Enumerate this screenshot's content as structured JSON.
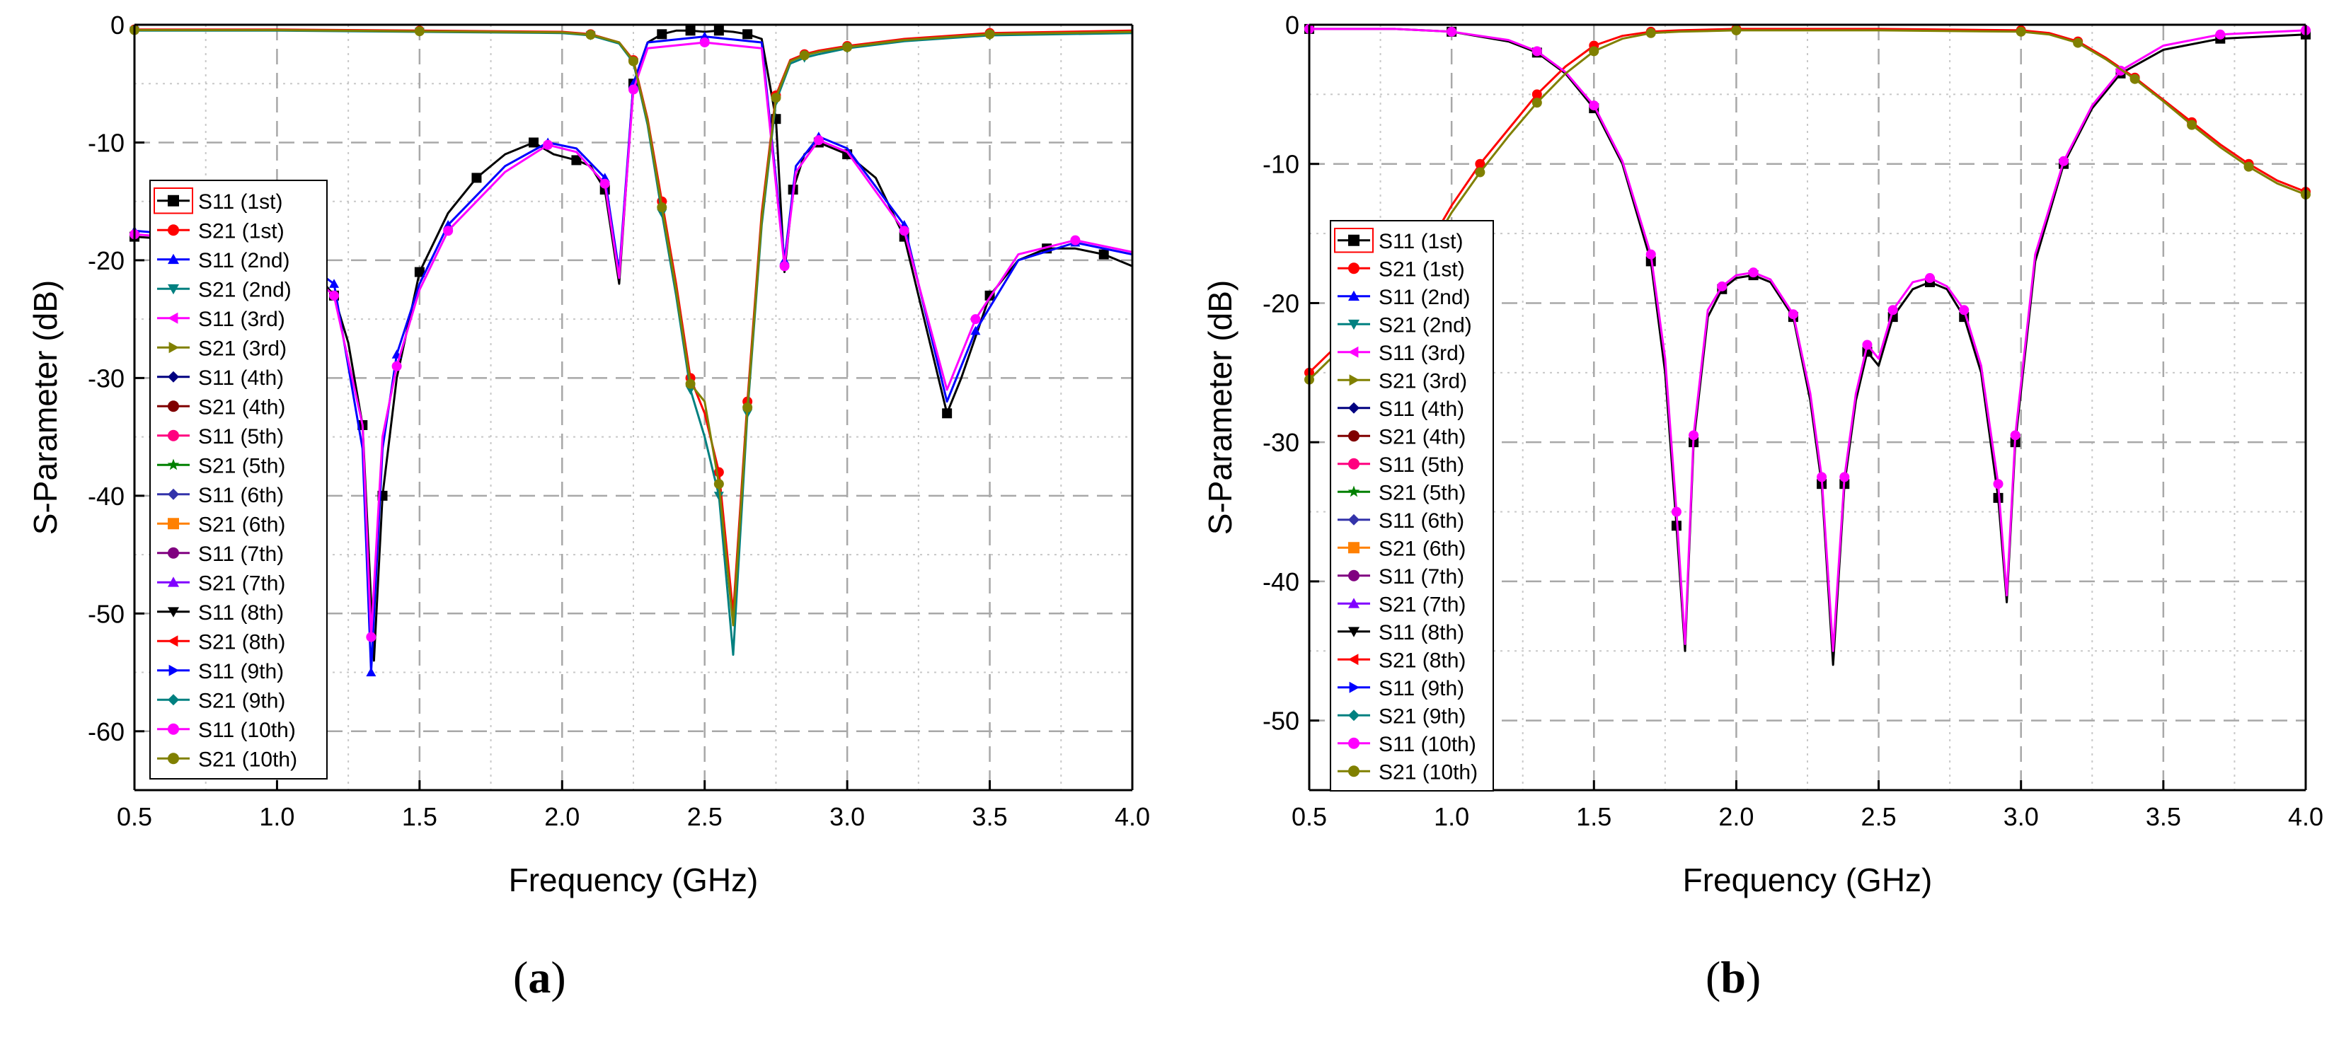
{
  "figure": {
    "panels": [
      {
        "label_open": "(",
        "label_letter": "a",
        "label_close": ")"
      },
      {
        "label_open": "(",
        "label_letter": "b",
        "label_close": ")"
      }
    ]
  },
  "chart_data": [
    {
      "type": "line",
      "title": "",
      "xlabel": "Frequency (GHz)",
      "ylabel": "S-Parameter (dB)",
      "xlim": [
        0.5,
        4.0
      ],
      "ylim": [
        -65,
        0
      ],
      "xticks": [
        0.5,
        1.0,
        1.5,
        2.0,
        2.5,
        3.0,
        3.5,
        4.0
      ],
      "xtick_labels": [
        "0.5",
        "1.0",
        "1.5",
        "2.0",
        "2.5",
        "3.0",
        "3.5",
        "4.0"
      ],
      "yticks": [
        0,
        -10,
        -20,
        -30,
        -40,
        -50,
        -60
      ],
      "ytick_labels": [
        "0",
        "-10",
        "-20",
        "-30",
        "-40",
        "-50",
        "-60"
      ],
      "grid": true,
      "legend_position": "left",
      "legend": [
        {
          "name": "S11 (1st)",
          "color": "#000000",
          "marker": "square"
        },
        {
          "name": "S21 (1st)",
          "color": "#ff0000",
          "marker": "circle"
        },
        {
          "name": "S11 (2nd)",
          "color": "#0000ff",
          "marker": "triangle-up"
        },
        {
          "name": "S21 (2nd)",
          "color": "#008080",
          "marker": "triangle-down"
        },
        {
          "name": "S11 (3rd)",
          "color": "#ff00ff",
          "marker": "triangle-left"
        },
        {
          "name": "S21 (3rd)",
          "color": "#808000",
          "marker": "triangle-right"
        },
        {
          "name": "S11 (4th)",
          "color": "#000080",
          "marker": "diamond"
        },
        {
          "name": "S21 (4th)",
          "color": "#800000",
          "marker": "circle"
        },
        {
          "name": "S11 (5th)",
          "color": "#ff007f",
          "marker": "circle"
        },
        {
          "name": "S21 (5th)",
          "color": "#008000",
          "marker": "star"
        },
        {
          "name": "S11 (6th)",
          "color": "#3333aa",
          "marker": "diamond"
        },
        {
          "name": "S21 (6th)",
          "color": "#ff8000",
          "marker": "square"
        },
        {
          "name": "S11 (7th)",
          "color": "#800080",
          "marker": "circle"
        },
        {
          "name": "S21 (7th)",
          "color": "#8000ff",
          "marker": "triangle-up"
        },
        {
          "name": "S11 (8th)",
          "color": "#000000",
          "marker": "triangle-down"
        },
        {
          "name": "S21 (8th)",
          "color": "#ff0000",
          "marker": "triangle-left"
        },
        {
          "name": "S11 (9th)",
          "color": "#0000ff",
          "marker": "triangle-right"
        },
        {
          "name": "S21 (9th)",
          "color": "#008080",
          "marker": "diamond"
        },
        {
          "name": "S11 (10th)",
          "color": "#ff00ff",
          "marker": "circle"
        },
        {
          "name": "S21 (10th)",
          "color": "#808000",
          "marker": "circle"
        }
      ],
      "series": [
        {
          "name": "S11 (1st)",
          "color": "#000000",
          "x": [
            0.5,
            0.8,
            1.0,
            1.1,
            1.2,
            1.25,
            1.3,
            1.34,
            1.37,
            1.42,
            1.5,
            1.6,
            1.7,
            1.8,
            1.9,
            1.97,
            2.05,
            2.1,
            2.15,
            2.2,
            2.25,
            2.3,
            2.35,
            2.4,
            2.45,
            2.5,
            2.55,
            2.6,
            2.65,
            2.7,
            2.75,
            2.78,
            2.81,
            2.85,
            2.9,
            2.95,
            3.0,
            3.1,
            3.2,
            3.3,
            3.35,
            3.4,
            3.5,
            3.6,
            3.7,
            3.8,
            3.9,
            4.0
          ],
          "y": [
            -18,
            -18.5,
            -19,
            -20,
            -23,
            -27,
            -34,
            -54,
            -40,
            -30,
            -21,
            -16,
            -13,
            -11,
            -10,
            -11,
            -11.5,
            -12,
            -14,
            -22,
            -5,
            -1.5,
            -0.8,
            -0.5,
            -0.5,
            -0.6,
            -0.5,
            -0.6,
            -0.8,
            -1.2,
            -8,
            -21,
            -14,
            -11,
            -10,
            -10.5,
            -11,
            -13,
            -18,
            -28,
            -33,
            -30,
            -23,
            -20,
            -19,
            -19,
            -19.5,
            -20.5
          ]
        },
        {
          "name": "S21 (1st)",
          "color": "#ff0000",
          "x": [
            0.5,
            1.0,
            1.5,
            2.0,
            2.1,
            2.2,
            2.25,
            2.3,
            2.35,
            2.4,
            2.45,
            2.5,
            2.55,
            2.6,
            2.65,
            2.7,
            2.75,
            2.8,
            2.85,
            2.9,
            3.0,
            3.2,
            3.5,
            4.0
          ],
          "y": [
            -0.4,
            -0.4,
            -0.5,
            -0.6,
            -0.8,
            -1.5,
            -3,
            -8,
            -15,
            -22,
            -30,
            -33,
            -38,
            -50,
            -32,
            -16,
            -6,
            -3,
            -2.5,
            -2.2,
            -1.8,
            -1.2,
            -0.7,
            -0.5
          ]
        },
        {
          "name": "S11 (2nd)",
          "color": "#0000ff",
          "x": [
            0.5,
            1.0,
            1.2,
            1.3,
            1.33,
            1.37,
            1.42,
            1.5,
            1.6,
            1.8,
            1.95,
            2.05,
            2.15,
            2.2,
            2.25,
            2.3,
            2.5,
            2.7,
            2.78,
            2.82,
            2.9,
            3.0,
            3.2,
            3.35,
            3.45,
            3.6,
            3.8,
            4.0
          ],
          "y": [
            -17.5,
            -18.5,
            -22,
            -36,
            -55,
            -36,
            -28,
            -22,
            -17,
            -12,
            -10,
            -10.5,
            -13,
            -21,
            -5,
            -1.5,
            -1,
            -1.5,
            -20,
            -12,
            -9.5,
            -10.5,
            -17,
            -32,
            -26,
            -20,
            -18.5,
            -19.5
          ]
        },
        {
          "name": "S21 (2nd)",
          "color": "#008080",
          "x": [
            0.5,
            1.0,
            1.5,
            2.0,
            2.1,
            2.2,
            2.25,
            2.3,
            2.35,
            2.4,
            2.45,
            2.5,
            2.55,
            2.6,
            2.65,
            2.7,
            2.75,
            2.8,
            2.85,
            2.9,
            3.0,
            3.2,
            3.5,
            4.0
          ],
          "y": [
            -0.5,
            -0.5,
            -0.6,
            -0.7,
            -0.9,
            -1.6,
            -3.2,
            -8.5,
            -16,
            -23,
            -31,
            -35,
            -40,
            -53.5,
            -33,
            -17,
            -6.5,
            -3.3,
            -2.8,
            -2.5,
            -2.0,
            -1.4,
            -0.9,
            -0.7
          ]
        },
        {
          "name": "S11 (10th)",
          "color": "#ff00ff",
          "x": [
            0.5,
            1.0,
            1.2,
            1.3,
            1.33,
            1.37,
            1.42,
            1.5,
            1.6,
            1.8,
            1.95,
            2.05,
            2.15,
            2.2,
            2.25,
            2.3,
            2.5,
            2.7,
            2.78,
            2.82,
            2.9,
            3.0,
            3.2,
            3.35,
            3.45,
            3.6,
            3.8,
            4.0
          ],
          "y": [
            -17.8,
            -18.7,
            -23,
            -34,
            -52,
            -35,
            -29,
            -22.5,
            -17.5,
            -12.5,
            -10.2,
            -10.8,
            -13.5,
            -21.5,
            -5.5,
            -2,
            -1.5,
            -2,
            -20.5,
            -12.5,
            -9.8,
            -10.8,
            -17.5,
            -31,
            -25,
            -19.5,
            -18.3,
            -19.3
          ]
        },
        {
          "name": "S21 (10th)",
          "color": "#808000",
          "x": [
            0.5,
            1.0,
            1.5,
            2.0,
            2.1,
            2.2,
            2.25,
            2.3,
            2.35,
            2.4,
            2.45,
            2.5,
            2.55,
            2.6,
            2.65,
            2.7,
            2.75,
            2.8,
            2.85,
            2.9,
            3.0,
            3.2,
            3.5,
            4.0
          ],
          "y": [
            -0.45,
            -0.45,
            -0.55,
            -0.65,
            -0.85,
            -1.5,
            -3.1,
            -8.2,
            -15.5,
            -22.5,
            -30.5,
            -32,
            -39,
            -51,
            -32.5,
            -16.5,
            -6.2,
            -3.1,
            -2.6,
            -2.3,
            -1.9,
            -1.3,
            -0.8,
            -0.6
          ]
        }
      ]
    },
    {
      "type": "line",
      "title": "",
      "xlabel": "Frequency (GHz)",
      "ylabel": "S-Parameter (dB)",
      "xlim": [
        0.5,
        4.0
      ],
      "ylim": [
        -55,
        0
      ],
      "xticks": [
        0.5,
        1.0,
        1.5,
        2.0,
        2.5,
        3.0,
        3.5,
        4.0
      ],
      "xtick_labels": [
        "0.5",
        "1.0",
        "1.5",
        "2.0",
        "2.5",
        "3.0",
        "3.5",
        "4.0"
      ],
      "yticks": [
        0,
        -10,
        -20,
        -30,
        -40,
        -50
      ],
      "ytick_labels": [
        "0",
        "-10",
        "-20",
        "-30",
        "-40",
        "-50"
      ],
      "grid": true,
      "legend_position": "left",
      "legend": [
        {
          "name": "S11 (1st)",
          "color": "#000000",
          "marker": "square"
        },
        {
          "name": "S21 (1st)",
          "color": "#ff0000",
          "marker": "circle"
        },
        {
          "name": "S11 (2nd)",
          "color": "#0000ff",
          "marker": "triangle-up"
        },
        {
          "name": "S21 (2nd)",
          "color": "#008080",
          "marker": "triangle-down"
        },
        {
          "name": "S11 (3rd)",
          "color": "#ff00ff",
          "marker": "triangle-left"
        },
        {
          "name": "S21 (3rd)",
          "color": "#808000",
          "marker": "triangle-right"
        },
        {
          "name": "S11 (4th)",
          "color": "#000080",
          "marker": "diamond"
        },
        {
          "name": "S21 (4th)",
          "color": "#800000",
          "marker": "circle"
        },
        {
          "name": "S11 (5th)",
          "color": "#ff007f",
          "marker": "circle"
        },
        {
          "name": "S21 (5th)",
          "color": "#008000",
          "marker": "star"
        },
        {
          "name": "S11 (6th)",
          "color": "#3333aa",
          "marker": "diamond"
        },
        {
          "name": "S21 (6th)",
          "color": "#ff8000",
          "marker": "square"
        },
        {
          "name": "S11 (7th)",
          "color": "#800080",
          "marker": "circle"
        },
        {
          "name": "S21 (7th)",
          "color": "#8000ff",
          "marker": "triangle-up"
        },
        {
          "name": "S11 (8th)",
          "color": "#000000",
          "marker": "triangle-down"
        },
        {
          "name": "S21 (8th)",
          "color": "#ff0000",
          "marker": "triangle-left"
        },
        {
          "name": "S11 (9th)",
          "color": "#0000ff",
          "marker": "triangle-right"
        },
        {
          "name": "S21 (9th)",
          "color": "#008080",
          "marker": "diamond"
        },
        {
          "name": "S11 (10th)",
          "color": "#ff00ff",
          "marker": "circle"
        },
        {
          "name": "S21 (10th)",
          "color": "#808000",
          "marker": "circle"
        }
      ],
      "series": [
        {
          "name": "S11 (1st)",
          "color": "#000000",
          "x": [
            0.5,
            0.8,
            1.0,
            1.2,
            1.3,
            1.4,
            1.5,
            1.6,
            1.7,
            1.75,
            1.79,
            1.82,
            1.85,
            1.9,
            1.95,
            2.0,
            2.06,
            2.12,
            2.2,
            2.26,
            2.3,
            2.34,
            2.38,
            2.42,
            2.46,
            2.5,
            2.55,
            2.62,
            2.68,
            2.74,
            2.8,
            2.86,
            2.92,
            2.95,
            2.98,
            3.05,
            3.15,
            3.25,
            3.35,
            3.5,
            3.7,
            3.9,
            4.0
          ],
          "y": [
            -0.3,
            -0.3,
            -0.5,
            -1.2,
            -2,
            -3.5,
            -6,
            -10,
            -17,
            -25,
            -36,
            -45,
            -30,
            -21,
            -19,
            -18.2,
            -18,
            -18.5,
            -21,
            -27,
            -33,
            -46,
            -33,
            -27,
            -23.5,
            -24.5,
            -21,
            -19,
            -18.5,
            -19,
            -21,
            -25,
            -34,
            -41.5,
            -30,
            -17,
            -10,
            -6,
            -3.5,
            -1.8,
            -1,
            -0.8,
            -0.7
          ]
        },
        {
          "name": "S21 (1st)",
          "color": "#ff0000",
          "x": [
            0.5,
            0.7,
            0.9,
            1.0,
            1.1,
            1.2,
            1.3,
            1.4,
            1.5,
            1.6,
            1.7,
            1.8,
            2.0,
            2.5,
            3.0,
            3.1,
            3.2,
            3.3,
            3.4,
            3.5,
            3.6,
            3.7,
            3.8,
            3.9,
            4.0
          ],
          "y": [
            -25,
            -21,
            -16.5,
            -13,
            -10,
            -7.5,
            -5,
            -3,
            -1.5,
            -0.8,
            -0.5,
            -0.4,
            -0.3,
            -0.3,
            -0.4,
            -0.6,
            -1.2,
            -2.4,
            -3.8,
            -5.4,
            -7,
            -8.6,
            -10,
            -11.2,
            -12
          ]
        },
        {
          "name": "S11 (10th)",
          "color": "#ff00ff",
          "x": [
            0.5,
            0.8,
            1.0,
            1.2,
            1.3,
            1.4,
            1.5,
            1.6,
            1.7,
            1.75,
            1.79,
            1.82,
            1.85,
            1.9,
            1.95,
            2.0,
            2.06,
            2.12,
            2.2,
            2.26,
            2.3,
            2.34,
            2.38,
            2.42,
            2.46,
            2.5,
            2.55,
            2.62,
            2.68,
            2.74,
            2.8,
            2.86,
            2.92,
            2.95,
            2.98,
            3.05,
            3.15,
            3.25,
            3.35,
            3.5,
            3.7,
            3.9,
            4.0
          ],
          "y": [
            -0.3,
            -0.3,
            -0.5,
            -1.1,
            -1.9,
            -3.4,
            -5.8,
            -9.8,
            -16.5,
            -24,
            -35,
            -44.5,
            -29.5,
            -20.5,
            -18.8,
            -18,
            -17.8,
            -18.3,
            -20.8,
            -26.5,
            -32.5,
            -45,
            -32.5,
            -26.5,
            -23,
            -24,
            -20.5,
            -18.5,
            -18.2,
            -18.8,
            -20.5,
            -24.5,
            -33,
            -41,
            -29.5,
            -16.5,
            -9.8,
            -5.8,
            -3.3,
            -1.5,
            -0.7,
            -0.5,
            -0.4
          ]
        },
        {
          "name": "S21 (10th)",
          "color": "#808000",
          "x": [
            0.5,
            0.7,
            0.9,
            1.0,
            1.1,
            1.2,
            1.3,
            1.4,
            1.5,
            1.6,
            1.7,
            1.8,
            2.0,
            2.5,
            3.0,
            3.1,
            3.2,
            3.3,
            3.4,
            3.5,
            3.6,
            3.7,
            3.8,
            3.9,
            4.0
          ],
          "y": [
            -25.5,
            -21.5,
            -17,
            -13.5,
            -10.6,
            -8,
            -5.6,
            -3.5,
            -1.9,
            -1.0,
            -0.6,
            -0.5,
            -0.4,
            -0.4,
            -0.5,
            -0.7,
            -1.3,
            -2.5,
            -3.9,
            -5.5,
            -7.2,
            -8.8,
            -10.2,
            -11.4,
            -12.2
          ]
        }
      ]
    }
  ]
}
